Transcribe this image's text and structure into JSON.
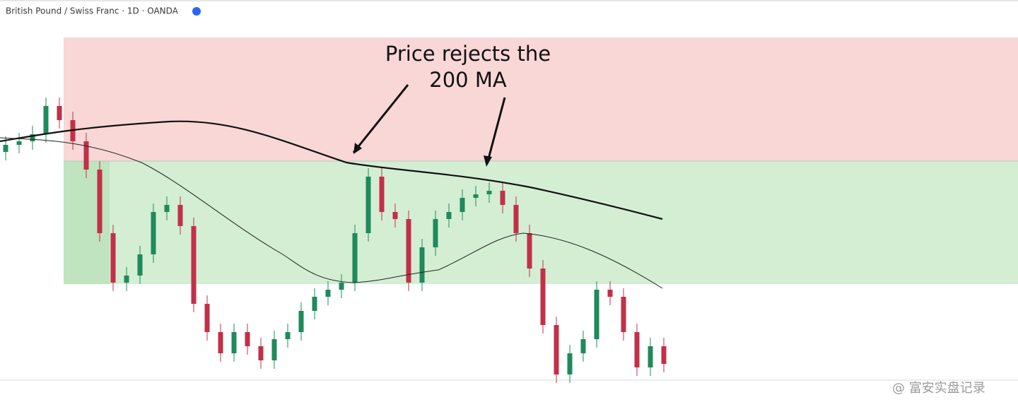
{
  "header": {
    "symbol": "British Pound / Swiss Franc · 1D · OANDA"
  },
  "annotation": {
    "lines": [
      "Price rejects the",
      "200 MA"
    ]
  },
  "watermark": "@ 富安实盘记录"
}
